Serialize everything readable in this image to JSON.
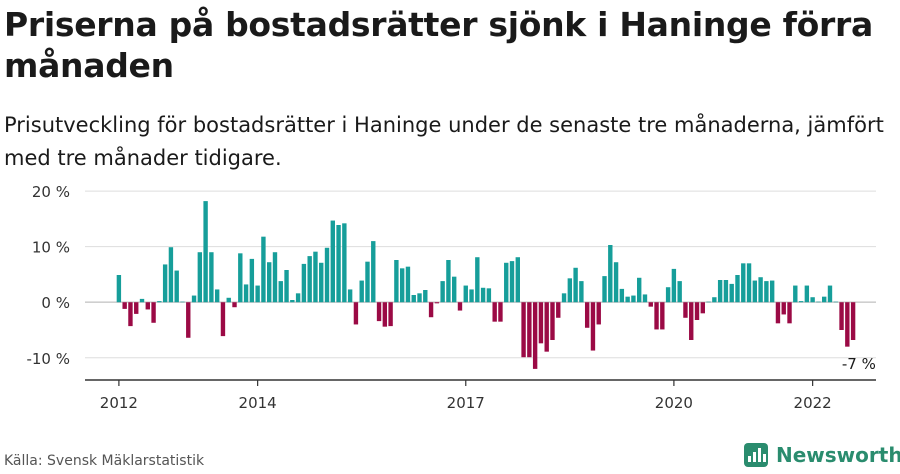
{
  "title": "Priserna på bostadsrätter sjönk i Haninge förra månaden",
  "subtitle": "Prisutveckling för bostadsrätter i Haninge under de senaste tre månaderna, jämfört med tre månader tidigare.",
  "source": "Källa: Svensk Mäklarstatistik",
  "brand": {
    "name": "Newsworthy",
    "icon": "newsworthy-logo-icon"
  },
  "colors": {
    "positive": "#169e9a",
    "negative": "#9b0a45",
    "axis": "#333333",
    "grid": "#dddddd"
  },
  "chart_data": {
    "type": "bar",
    "title": "",
    "xlabel": "",
    "ylabel": "",
    "ylim": [
      -14,
      22
    ],
    "y_ticks": [
      {
        "value": 20,
        "label": "20 %"
      },
      {
        "value": 10,
        "label": "10 %"
      },
      {
        "value": 0,
        "label": "0 %"
      },
      {
        "value": -10,
        "label": "-10 %"
      }
    ],
    "x_ticks": [
      {
        "year": 2012,
        "label": "2012"
      },
      {
        "year": 2014,
        "label": "2014"
      },
      {
        "year": 2017,
        "label": "2017"
      },
      {
        "year": 2020,
        "label": "2020"
      },
      {
        "year": 2022,
        "label": "2022"
      }
    ],
    "grid": true,
    "annotation": {
      "label": "-7 %",
      "value": -7,
      "month": "2022-09"
    },
    "series": [
      {
        "values": [
          {
            "month": "2012-01",
            "value": 4.9
          },
          {
            "month": "2012-02",
            "value": -1.2
          },
          {
            "month": "2012-03",
            "value": -4.3
          },
          {
            "month": "2012-04",
            "value": -2.1
          },
          {
            "month": "2012-05",
            "value": 0.6
          },
          {
            "month": "2012-06",
            "value": -1.3
          },
          {
            "month": "2012-07",
            "value": -3.7
          },
          {
            "month": "2012-08",
            "value": 0.2
          },
          {
            "month": "2012-09",
            "value": 6.8
          },
          {
            "month": "2012-10",
            "value": 9.9
          },
          {
            "month": "2012-11",
            "value": 5.7
          },
          {
            "month": "2012-12",
            "value": 0.1
          },
          {
            "month": "2013-01",
            "value": -6.4
          },
          {
            "month": "2013-02",
            "value": 1.2
          },
          {
            "month": "2013-03",
            "value": 9.0
          },
          {
            "month": "2013-04",
            "value": 18.2
          },
          {
            "month": "2013-05",
            "value": 9.0
          },
          {
            "month": "2013-06",
            "value": 2.3
          },
          {
            "month": "2013-07",
            "value": -6.1
          },
          {
            "month": "2013-08",
            "value": 0.8
          },
          {
            "month": "2013-09",
            "value": -0.9
          },
          {
            "month": "2013-10",
            "value": 8.8
          },
          {
            "month": "2013-11",
            "value": 3.2
          },
          {
            "month": "2013-12",
            "value": 7.8
          },
          {
            "month": "2014-01",
            "value": 3.0
          },
          {
            "month": "2014-02",
            "value": 11.8
          },
          {
            "month": "2014-03",
            "value": 7.2
          },
          {
            "month": "2014-04",
            "value": 9.0
          },
          {
            "month": "2014-05",
            "value": 3.8
          },
          {
            "month": "2014-06",
            "value": 5.8
          },
          {
            "month": "2014-07",
            "value": 0.4
          },
          {
            "month": "2014-08",
            "value": 1.6
          },
          {
            "month": "2014-09",
            "value": 6.9
          },
          {
            "month": "2014-10",
            "value": 8.3
          },
          {
            "month": "2014-11",
            "value": 9.1
          },
          {
            "month": "2014-12",
            "value": 7.1
          },
          {
            "month": "2015-01",
            "value": 9.8
          },
          {
            "month": "2015-02",
            "value": 14.7
          },
          {
            "month": "2015-03",
            "value": 13.9
          },
          {
            "month": "2015-04",
            "value": 14.2
          },
          {
            "month": "2015-05",
            "value": 2.3
          },
          {
            "month": "2015-06",
            "value": -4.0
          },
          {
            "month": "2015-07",
            "value": 3.9
          },
          {
            "month": "2015-08",
            "value": 7.3
          },
          {
            "month": "2015-09",
            "value": 11.0
          },
          {
            "month": "2015-10",
            "value": -3.4
          },
          {
            "month": "2015-11",
            "value": -4.4
          },
          {
            "month": "2015-12",
            "value": -4.3
          },
          {
            "month": "2016-01",
            "value": 7.6
          },
          {
            "month": "2016-02",
            "value": 6.1
          },
          {
            "month": "2016-03",
            "value": 6.4
          },
          {
            "month": "2016-04",
            "value": 1.3
          },
          {
            "month": "2016-05",
            "value": 1.6
          },
          {
            "month": "2016-06",
            "value": 2.2
          },
          {
            "month": "2016-07",
            "value": -2.7
          },
          {
            "month": "2016-08",
            "value": -0.2
          },
          {
            "month": "2016-09",
            "value": 3.8
          },
          {
            "month": "2016-10",
            "value": 7.6
          },
          {
            "month": "2016-11",
            "value": 4.6
          },
          {
            "month": "2016-12",
            "value": -1.5
          },
          {
            "month": "2017-01",
            "value": 3.0
          },
          {
            "month": "2017-02",
            "value": 2.3
          },
          {
            "month": "2017-03",
            "value": 8.1
          },
          {
            "month": "2017-04",
            "value": 2.6
          },
          {
            "month": "2017-05",
            "value": 2.5
          },
          {
            "month": "2017-06",
            "value": -3.5
          },
          {
            "month": "2017-07",
            "value": -3.5
          },
          {
            "month": "2017-08",
            "value": 7.1
          },
          {
            "month": "2017-09",
            "value": 7.4
          },
          {
            "month": "2017-10",
            "value": 8.1
          },
          {
            "month": "2017-11",
            "value": -9.9
          },
          {
            "month": "2017-12",
            "value": -9.9
          },
          {
            "month": "2018-01",
            "value": -12.0
          },
          {
            "month": "2018-02",
            "value": -7.4
          },
          {
            "month": "2018-03",
            "value": -8.9
          },
          {
            "month": "2018-04",
            "value": -6.8
          },
          {
            "month": "2018-05",
            "value": -2.8
          },
          {
            "month": "2018-06",
            "value": 1.6
          },
          {
            "month": "2018-07",
            "value": 4.3
          },
          {
            "month": "2018-08",
            "value": 6.2
          },
          {
            "month": "2018-09",
            "value": 3.8
          },
          {
            "month": "2018-10",
            "value": -4.6
          },
          {
            "month": "2018-11",
            "value": -8.7
          },
          {
            "month": "2018-12",
            "value": -4.0
          },
          {
            "month": "2019-01",
            "value": 4.7
          },
          {
            "month": "2019-02",
            "value": 10.3
          },
          {
            "month": "2019-03",
            "value": 7.2
          },
          {
            "month": "2019-04",
            "value": 2.4
          },
          {
            "month": "2019-05",
            "value": 1.0
          },
          {
            "month": "2019-06",
            "value": 1.2
          },
          {
            "month": "2019-07",
            "value": 4.4
          },
          {
            "month": "2019-08",
            "value": 1.4
          },
          {
            "month": "2019-09",
            "value": -0.8
          },
          {
            "month": "2019-10",
            "value": -4.9
          },
          {
            "month": "2019-11",
            "value": -4.9
          },
          {
            "month": "2019-12",
            "value": 2.7
          },
          {
            "month": "2020-01",
            "value": 6.0
          },
          {
            "month": "2020-02",
            "value": 3.8
          },
          {
            "month": "2020-03",
            "value": -2.8
          },
          {
            "month": "2020-04",
            "value": -6.8
          },
          {
            "month": "2020-05",
            "value": -3.2
          },
          {
            "month": "2020-06",
            "value": -2.0
          },
          {
            "month": "2020-07",
            "value": 0.1
          },
          {
            "month": "2020-08",
            "value": 0.9
          },
          {
            "month": "2020-09",
            "value": 4.0
          },
          {
            "month": "2020-10",
            "value": 4.0
          },
          {
            "month": "2020-11",
            "value": 3.3
          },
          {
            "month": "2020-12",
            "value": 4.9
          },
          {
            "month": "2021-01",
            "value": 7.0
          },
          {
            "month": "2021-02",
            "value": 7.0
          },
          {
            "month": "2021-03",
            "value": 3.9
          },
          {
            "month": "2021-04",
            "value": 4.5
          },
          {
            "month": "2021-05",
            "value": 3.8
          },
          {
            "month": "2021-06",
            "value": 3.9
          },
          {
            "month": "2021-07",
            "value": -3.8
          },
          {
            "month": "2021-08",
            "value": -2.2
          },
          {
            "month": "2021-09",
            "value": -3.8
          },
          {
            "month": "2021-10",
            "value": 3.0
          },
          {
            "month": "2021-11",
            "value": 0.2
          },
          {
            "month": "2021-12",
            "value": 3.0
          },
          {
            "month": "2022-01",
            "value": 0.9
          },
          {
            "month": "2022-02",
            "value": 0.1
          },
          {
            "month": "2022-03",
            "value": 1.0
          },
          {
            "month": "2022-04",
            "value": 3.0
          },
          {
            "month": "2022-05",
            "value": 0.1
          },
          {
            "month": "2022-06",
            "value": -5.0
          },
          {
            "month": "2022-07",
            "value": -8.0
          },
          {
            "month": "2022-08",
            "value": -6.8
          }
        ]
      }
    ]
  }
}
